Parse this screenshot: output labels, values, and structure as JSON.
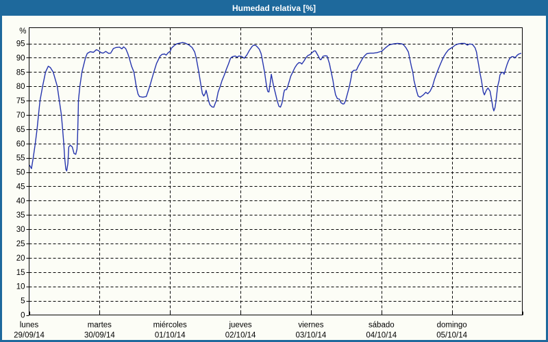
{
  "window": {
    "title": "Humedad relativa [%]"
  },
  "colors": {
    "frame_blue": "#1e699c",
    "title_text": "#ffffff",
    "plot_background": "#fcfdf6",
    "line_color": "#2433ad",
    "grid_color": "#000000",
    "label_color": "#000000"
  },
  "chart_data": {
    "type": "line",
    "title": "Humedad relativa [%]",
    "ylabel": "%",
    "ylim": [
      0,
      100
    ],
    "yticks": [
      0,
      5,
      10,
      15,
      20,
      25,
      30,
      35,
      40,
      45,
      50,
      55,
      60,
      65,
      70,
      75,
      80,
      85,
      90,
      95
    ],
    "grid": "dashed",
    "legend_position": "none",
    "x_total_hours": 168,
    "days": [
      {
        "name": "lunes",
        "date": "29/09/14"
      },
      {
        "name": "martes",
        "date": "30/09/14"
      },
      {
        "name": "miércoles",
        "date": "01/10/14"
      },
      {
        "name": "jueves",
        "date": "02/10/14"
      },
      {
        "name": "viernes",
        "date": "03/10/14"
      },
      {
        "name": "sábado",
        "date": "04/10/14"
      },
      {
        "name": "domingo",
        "date": "05/10/14"
      }
    ],
    "series": [
      {
        "name": "Humedad relativa",
        "units": "%",
        "points": [
          [
            0.2,
            52.3
          ],
          [
            0.8,
            51.2
          ],
          [
            1.4,
            55
          ],
          [
            2.1,
            60
          ],
          [
            2.7,
            65
          ],
          [
            3.2,
            70
          ],
          [
            3.7,
            75
          ],
          [
            4.6,
            80
          ],
          [
            5.6,
            85
          ],
          [
            6.5,
            87
          ],
          [
            7.2,
            86.6
          ],
          [
            8.2,
            85
          ],
          [
            9.6,
            80
          ],
          [
            10.3,
            75
          ],
          [
            11,
            70
          ],
          [
            11.4,
            65
          ],
          [
            11.8,
            60
          ],
          [
            12.1,
            55
          ],
          [
            12.5,
            51
          ],
          [
            12.8,
            50.4
          ],
          [
            13.2,
            53
          ],
          [
            13.5,
            58.8
          ],
          [
            14,
            59.4
          ],
          [
            14.7,
            58.8
          ],
          [
            15.3,
            56.5
          ],
          [
            15.9,
            56.2
          ],
          [
            16.3,
            58
          ],
          [
            16.5,
            62
          ],
          [
            16.7,
            70
          ],
          [
            16.8,
            75
          ],
          [
            17.3,
            80
          ],
          [
            18,
            85
          ],
          [
            19.2,
            90
          ],
          [
            19.8,
            91.5
          ],
          [
            20.8,
            92.1
          ],
          [
            21.9,
            91.9
          ],
          [
            22.9,
            92.8
          ],
          [
            23.6,
            92.5
          ],
          [
            24.5,
            91.8
          ],
          [
            25.2,
            91.6
          ],
          [
            26.1,
            92.2
          ],
          [
            27.1,
            91.5
          ],
          [
            27.8,
            91.6
          ],
          [
            28.7,
            93.2
          ],
          [
            29.6,
            93.6
          ],
          [
            30.8,
            93.7
          ],
          [
            31.6,
            93.1
          ],
          [
            32.2,
            93.8
          ],
          [
            32.9,
            93.2
          ],
          [
            33.6,
            91.5
          ],
          [
            34.1,
            90
          ],
          [
            34.9,
            87
          ],
          [
            35.7,
            85
          ],
          [
            36.5,
            80
          ],
          [
            37.1,
            77.3
          ],
          [
            37.6,
            76.4
          ],
          [
            38.7,
            76.2
          ],
          [
            39.9,
            76.4
          ],
          [
            40.6,
            78.5
          ],
          [
            41.1,
            80
          ],
          [
            41.8,
            82.5
          ],
          [
            42.5,
            85
          ],
          [
            43.4,
            88
          ],
          [
            44.6,
            90.5
          ],
          [
            45.3,
            91.2
          ],
          [
            46.2,
            91.3
          ],
          [
            46.7,
            90.9
          ],
          [
            47.4,
            91.8
          ],
          [
            48.1,
            92.3
          ],
          [
            48.5,
            93.4
          ],
          [
            49.7,
            94.5
          ],
          [
            50.4,
            94.9
          ],
          [
            51.3,
            95.1
          ],
          [
            52.3,
            95.3
          ],
          [
            53.2,
            95.1
          ],
          [
            54.4,
            94.5
          ],
          [
            55.5,
            93.6
          ],
          [
            56.4,
            92
          ],
          [
            56.9,
            90
          ],
          [
            57.8,
            85
          ],
          [
            58.6,
            80
          ],
          [
            59,
            77.5
          ],
          [
            59.5,
            76.6
          ],
          [
            60,
            77.5
          ],
          [
            60.3,
            78.6
          ],
          [
            60.8,
            76.5
          ],
          [
            61.1,
            75
          ],
          [
            61.6,
            73.5
          ],
          [
            62.3,
            72.8
          ],
          [
            62.9,
            72.7
          ],
          [
            63.5,
            74.3
          ],
          [
            63.8,
            75
          ],
          [
            64.4,
            78
          ],
          [
            65.1,
            80
          ],
          [
            65.7,
            82
          ],
          [
            66.5,
            84
          ],
          [
            67.2,
            86
          ],
          [
            67.9,
            87.8
          ],
          [
            68.6,
            89.8
          ],
          [
            69.3,
            90.4
          ],
          [
            70.2,
            90.6
          ],
          [
            70.9,
            90.2
          ],
          [
            71.4,
            90.6
          ],
          [
            72.3,
            90.5
          ],
          [
            73.3,
            89.8
          ],
          [
            74.2,
            91
          ],
          [
            75,
            92.5
          ],
          [
            76,
            94
          ],
          [
            76.5,
            94.4
          ],
          [
            77.2,
            94.3
          ],
          [
            77.9,
            93.6
          ],
          [
            78.4,
            93
          ],
          [
            79,
            91.5
          ],
          [
            79.3,
            90
          ],
          [
            80.2,
            85
          ],
          [
            80.9,
            80
          ],
          [
            81.3,
            78.2
          ],
          [
            81.7,
            78
          ],
          [
            82.1,
            81
          ],
          [
            82.5,
            84.2
          ],
          [
            82.9,
            82
          ],
          [
            83.3,
            80
          ],
          [
            83.9,
            77.5
          ],
          [
            84.5,
            75
          ],
          [
            85.1,
            73
          ],
          [
            85.6,
            72.7
          ],
          [
            86.1,
            74
          ],
          [
            86.4,
            75.5
          ],
          [
            86.7,
            77.5
          ],
          [
            87,
            78.7
          ],
          [
            87.7,
            78.9
          ],
          [
            88.1,
            80
          ],
          [
            88.7,
            82
          ],
          [
            89.1,
            83.5
          ],
          [
            89.8,
            85
          ],
          [
            90.5,
            86.5
          ],
          [
            91.2,
            87.6
          ],
          [
            91.9,
            88.3
          ],
          [
            92.5,
            88.2
          ],
          [
            92.9,
            87.8
          ],
          [
            93.7,
            89
          ],
          [
            94.3,
            90
          ],
          [
            95,
            90.8
          ],
          [
            95.7,
            91.1
          ],
          [
            96.4,
            91.8
          ],
          [
            97.1,
            92.4
          ],
          [
            97.5,
            92.4
          ],
          [
            98.4,
            90.8
          ],
          [
            99.1,
            89.4
          ],
          [
            99.4,
            89.3
          ],
          [
            100.1,
            90.5
          ],
          [
            100.8,
            90.7
          ],
          [
            101.5,
            90.6
          ],
          [
            102.3,
            88
          ],
          [
            102.9,
            85
          ],
          [
            103.5,
            82
          ],
          [
            103.8,
            80
          ],
          [
            104.4,
            77
          ],
          [
            105,
            75.7
          ],
          [
            105.7,
            75.5
          ],
          [
            106.2,
            74.3
          ],
          [
            106.9,
            73.8
          ],
          [
            107.3,
            73.9
          ],
          [
            107.8,
            75
          ],
          [
            108.6,
            78
          ],
          [
            109.1,
            80
          ],
          [
            109.7,
            83
          ],
          [
            110,
            85
          ],
          [
            110.6,
            85.6
          ],
          [
            111.5,
            85.7
          ],
          [
            112.1,
            87
          ],
          [
            112.9,
            88.5
          ],
          [
            113.6,
            89.8
          ],
          [
            114.3,
            90.7
          ],
          [
            115,
            91.4
          ],
          [
            116.2,
            91.6
          ],
          [
            117.3,
            91.6
          ],
          [
            118.5,
            91.8
          ],
          [
            119.2,
            92
          ],
          [
            120.2,
            92.3
          ],
          [
            121.3,
            93.4
          ],
          [
            122.3,
            94.2
          ],
          [
            123,
            94.6
          ],
          [
            124.4,
            94.9
          ],
          [
            125.5,
            95
          ],
          [
            126.7,
            94.9
          ],
          [
            127.4,
            94.7
          ],
          [
            128.3,
            93.6
          ],
          [
            129.2,
            92
          ],
          [
            129.6,
            90
          ],
          [
            130.2,
            87
          ],
          [
            130.7,
            85
          ],
          [
            131.1,
            82
          ],
          [
            131.6,
            80
          ],
          [
            132.1,
            78
          ],
          [
            132.5,
            76.6
          ],
          [
            133.2,
            76.2
          ],
          [
            134.3,
            77
          ],
          [
            135.1,
            77.9
          ],
          [
            135.8,
            77.4
          ],
          [
            136.6,
            78.3
          ],
          [
            137.4,
            80
          ],
          [
            138.1,
            82.5
          ],
          [
            139,
            85
          ],
          [
            139.8,
            87
          ],
          [
            140.6,
            89
          ],
          [
            141.3,
            90.5
          ],
          [
            142.1,
            91.8
          ],
          [
            142.8,
            92.7
          ],
          [
            143.5,
            93.2
          ],
          [
            144.4,
            93.8
          ],
          [
            145.1,
            94.4
          ],
          [
            146.1,
            94.8
          ],
          [
            147.2,
            95
          ],
          [
            148.4,
            95
          ],
          [
            149.3,
            94.4
          ],
          [
            150,
            94.8
          ],
          [
            151,
            94.7
          ],
          [
            151.9,
            93.5
          ],
          [
            152.4,
            92
          ],
          [
            152.7,
            90
          ],
          [
            153.2,
            87
          ],
          [
            153.5,
            85
          ],
          [
            154.1,
            82
          ],
          [
            154.4,
            80
          ],
          [
            154.7,
            78
          ],
          [
            155.1,
            77
          ],
          [
            155.4,
            77.8
          ],
          [
            155.8,
            78.7
          ],
          [
            156.3,
            79.4
          ],
          [
            157,
            78.3
          ],
          [
            157.6,
            75
          ],
          [
            158,
            72.5
          ],
          [
            158.3,
            71.4
          ],
          [
            158.7,
            72.5
          ],
          [
            159,
            74.5
          ],
          [
            159.6,
            80
          ],
          [
            160.1,
            82
          ],
          [
            160.4,
            84
          ],
          [
            161,
            84.9
          ],
          [
            161.5,
            84.8
          ],
          [
            161.8,
            84.2
          ],
          [
            162.3,
            86
          ],
          [
            162.8,
            87.6
          ],
          [
            163.3,
            89
          ],
          [
            163.9,
            90
          ],
          [
            164.5,
            90.4
          ],
          [
            165.1,
            90.3
          ],
          [
            165.4,
            89.9
          ],
          [
            166.3,
            90.9
          ],
          [
            166.8,
            91.3
          ],
          [
            167.5,
            91.5
          ]
        ]
      }
    ]
  }
}
